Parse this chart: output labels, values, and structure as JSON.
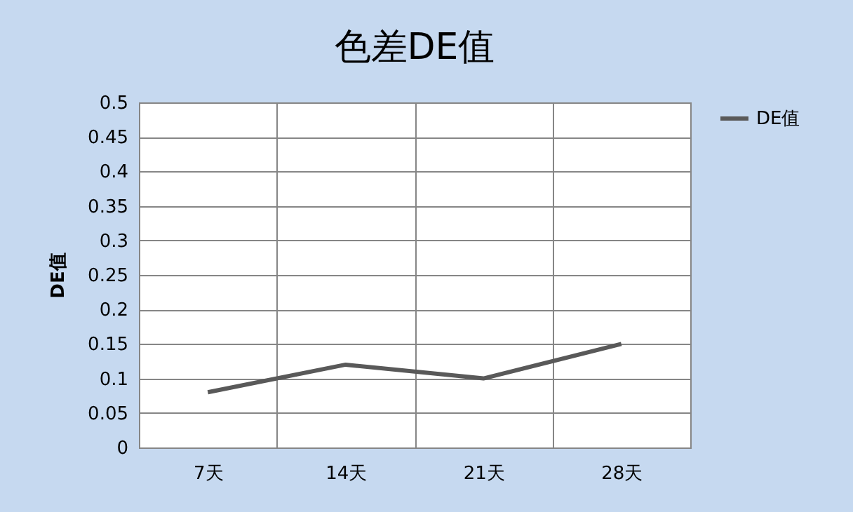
{
  "chart_data": {
    "type": "line",
    "title": "色差DE值",
    "ylabel": "DE值",
    "categories": [
      "7天",
      "14天",
      "21天",
      "28天"
    ],
    "series": [
      {
        "name": "DE值",
        "color": "#595959",
        "values": [
          0.08,
          0.12,
          0.1,
          0.15
        ]
      }
    ],
    "ylim": [
      0,
      0.5
    ],
    "yticks": [
      0,
      0.05,
      0.1,
      0.15,
      0.2,
      0.25,
      0.3,
      0.35,
      0.4,
      0.45,
      0.5
    ],
    "grid": true,
    "legend": "right"
  }
}
